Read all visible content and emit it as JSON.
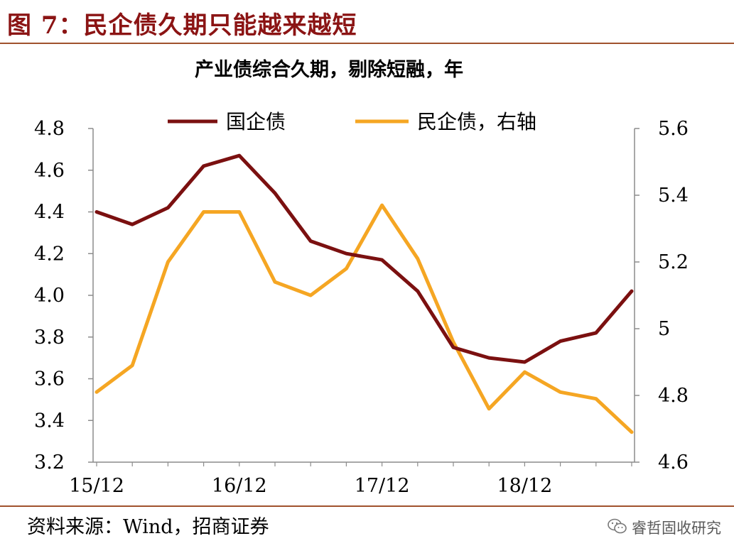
{
  "figure": {
    "title": "图 7：民企债久期只能越来越短",
    "source": "资料来源：Wind，招商证券",
    "watermark": "睿哲固收研究",
    "watermark_icon": "wechat-icon",
    "accent_color": "#8B1414",
    "rule_color": "#A0522D"
  },
  "chart_data": {
    "type": "line",
    "title": "产业债综合久期，剔除短融，年",
    "x": [
      "15/12",
      "16/03",
      "16/06",
      "16/09",
      "16/12",
      "17/03",
      "17/06",
      "17/09",
      "17/12",
      "18/03",
      "18/06",
      "18/09",
      "18/12",
      "19/03",
      "19/06",
      "19/09"
    ],
    "x_tick_labels": [
      "15/12",
      "16/12",
      "17/12",
      "18/12"
    ],
    "series": [
      {
        "name": "国企债",
        "axis": "left",
        "color": "#7B1010",
        "values": [
          4.4,
          4.34,
          4.42,
          4.62,
          4.67,
          4.49,
          4.26,
          4.2,
          4.17,
          4.02,
          3.75,
          3.7,
          3.68,
          3.78,
          3.82,
          4.02
        ]
      },
      {
        "name": "民企债，右轴",
        "axis": "right",
        "color": "#F5A623",
        "values": [
          4.81,
          4.89,
          5.2,
          5.35,
          5.35,
          5.14,
          5.1,
          5.18,
          5.37,
          5.21,
          4.96,
          4.76,
          4.87,
          4.81,
          4.79,
          4.69
        ]
      }
    ],
    "y_left": {
      "ylim": [
        3.2,
        4.8
      ],
      "ticks": [
        "3.2",
        "3.4",
        "3.6",
        "3.8",
        "4.0",
        "4.2",
        "4.4",
        "4.6",
        "4.8"
      ]
    },
    "y_right": {
      "ylim": [
        4.6,
        5.6
      ],
      "ticks": [
        "4.6",
        "4.8",
        "5",
        "5.2",
        "5.4",
        "5.6"
      ]
    },
    "legend_position": "top",
    "grid": false
  }
}
